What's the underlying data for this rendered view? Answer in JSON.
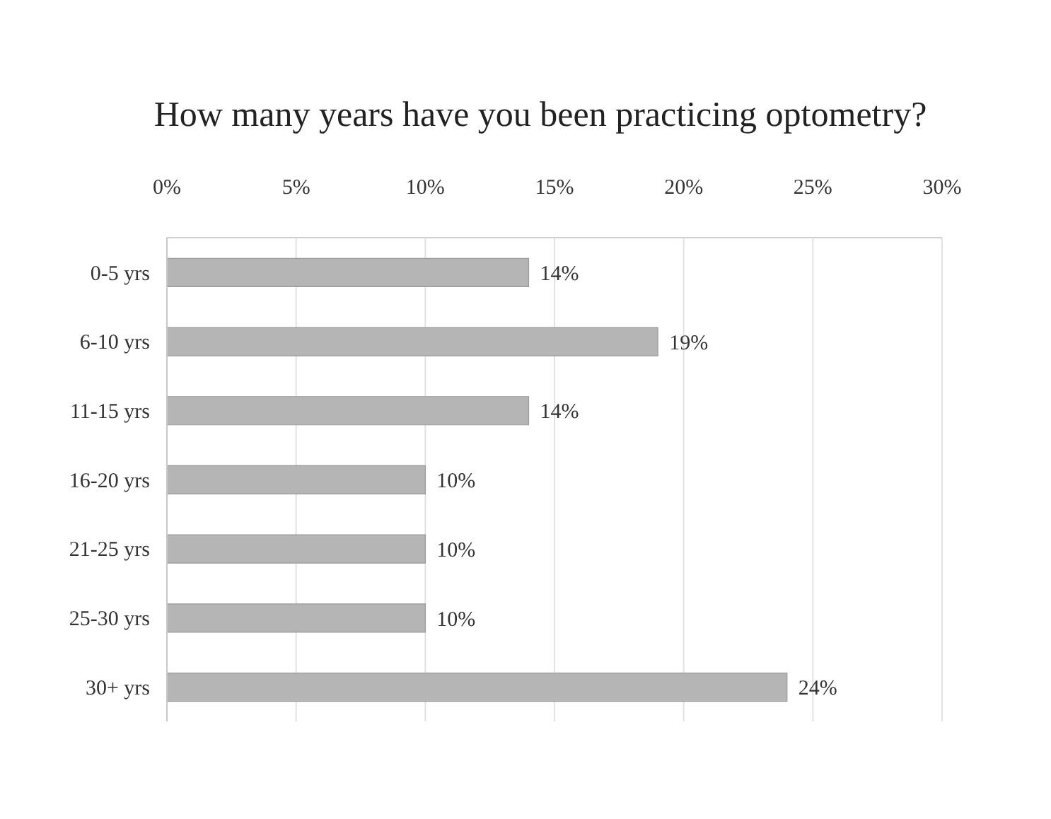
{
  "chart_data": {
    "type": "bar",
    "orientation": "horizontal",
    "title": "How many years have you been practicing optometry?",
    "categories": [
      "0-5 yrs",
      "6-10 yrs",
      "11-15 yrs",
      "16-20 yrs",
      "21-25 yrs",
      "25-30 yrs",
      "30+ yrs"
    ],
    "values": [
      14,
      19,
      14,
      10,
      10,
      10,
      24
    ],
    "value_labels": [
      "14%",
      "19%",
      "14%",
      "10%",
      "10%",
      "10%",
      "24%"
    ],
    "color": "#b5b5b5",
    "xlim": [
      0,
      30
    ],
    "xticks": [
      {
        "value": 0,
        "label": "0%"
      },
      {
        "value": 5,
        "label": "5%"
      },
      {
        "value": 10,
        "label": "10%"
      },
      {
        "value": 15,
        "label": "15%"
      },
      {
        "value": 20,
        "label": "20%"
      },
      {
        "value": 25,
        "label": "25%"
      },
      {
        "value": 30,
        "label": "30%"
      }
    ],
    "grid": "x"
  }
}
